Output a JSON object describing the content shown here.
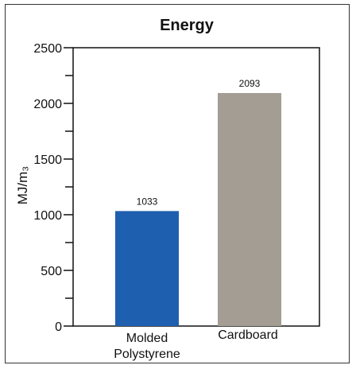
{
  "chart_data": {
    "type": "bar",
    "title": "Energy",
    "ylabel": "MJ/m₃",
    "xlabel": "",
    "categories": [
      [
        "Molded",
        "Polystyrene"
      ],
      [
        "Cardboard"
      ]
    ],
    "values": [
      1033,
      2093
    ],
    "data_labels": [
      "1033",
      "2093"
    ],
    "colors": [
      "#1f5fb0",
      "#a39d94"
    ],
    "ylim": [
      0,
      2500
    ],
    "major_ticks": [
      0,
      500,
      1000,
      1500,
      2000,
      2500
    ],
    "tick_labels": [
      "0",
      "500",
      "1000",
      "1500",
      "2000",
      "2500"
    ],
    "minor_tick_step": 250,
    "grid": false,
    "legend": "none"
  }
}
